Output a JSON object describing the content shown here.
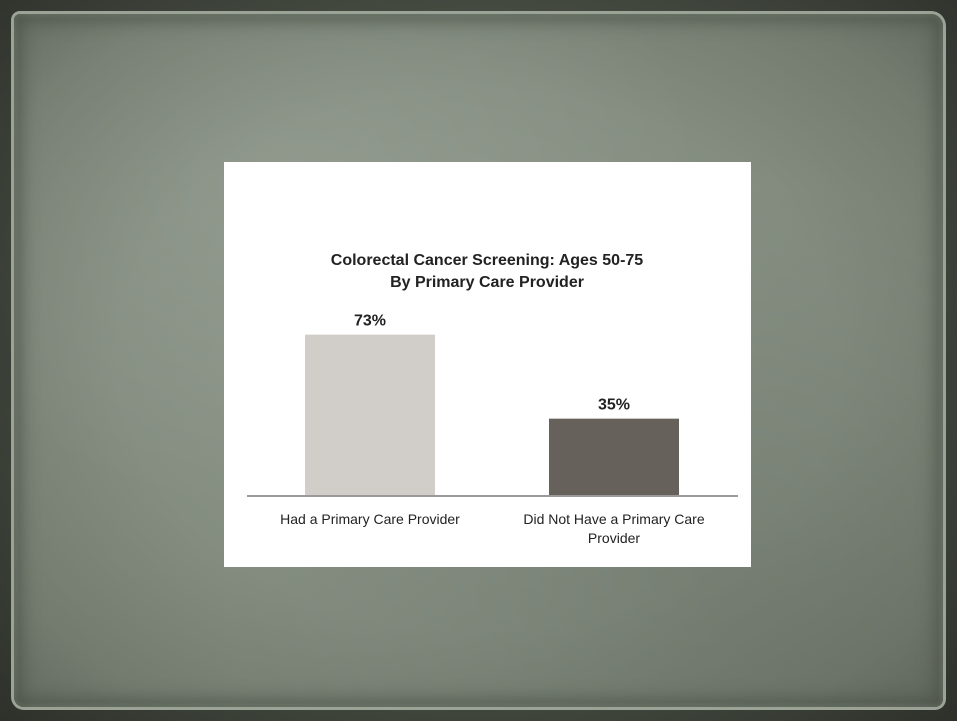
{
  "slide": {
    "colors": {
      "frame": "#3f463c",
      "parchment": "#8e978a",
      "card": "#ffffff"
    }
  },
  "chart_data": {
    "type": "bar",
    "title": [
      "Colorectal Cancer Screening: Ages 50-75",
      "By Primary Care Provider"
    ],
    "categories": [
      [
        "Had a Primary Care Provider"
      ],
      [
        "Did Not Have a Primary Care",
        "Provider"
      ]
    ],
    "values": [
      73,
      35
    ],
    "value_labels": [
      "73%",
      "35%"
    ],
    "colors": [
      "#d1cec9",
      "#67615b"
    ],
    "axis_color": "#9a9a9a",
    "ylim": [
      0,
      100
    ],
    "grid": false,
    "legend": "none"
  }
}
